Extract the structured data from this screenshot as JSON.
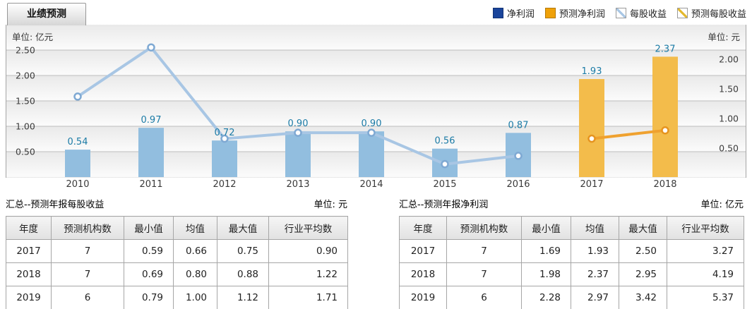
{
  "tab": {
    "label": "业绩预测"
  },
  "legend": [
    {
      "label": "净利润",
      "type": "filled",
      "color": "#1a449b"
    },
    {
      "label": "预测净利润",
      "type": "filled",
      "color": "#efa109"
    },
    {
      "label": "每股收益",
      "type": "line",
      "color": "#a8c6e4"
    },
    {
      "label": "预测每股收益",
      "type": "line",
      "color": "#e3b92e"
    }
  ],
  "chart": {
    "left_unit": "单位: 亿元",
    "right_unit": "单位: 元"
  },
  "chart_data": {
    "type": "bar+line",
    "categories": [
      "2010",
      "2011",
      "2012",
      "2013",
      "2014",
      "2015",
      "2016",
      "2017",
      "2018"
    ],
    "series": [
      {
        "name": "净利润",
        "type": "bar",
        "axis": "left",
        "color": "#92bedf",
        "values": [
          0.54,
          0.97,
          0.72,
          0.9,
          0.9,
          0.56,
          0.87,
          null,
          null
        ],
        "labeled": true
      },
      {
        "name": "预测净利润",
        "type": "bar",
        "axis": "left",
        "color": "#f3bc4b",
        "values": [
          null,
          null,
          null,
          null,
          null,
          null,
          null,
          1.93,
          2.37
        ],
        "labeled": true
      },
      {
        "name": "每股收益",
        "type": "line",
        "axis": "right",
        "color": "#a8c6e4",
        "marker_stroke": "#7fa9d3",
        "values": [
          1.37,
          2.2,
          0.66,
          0.76,
          0.76,
          0.23,
          0.37,
          null,
          null
        ],
        "labeled": false
      },
      {
        "name": "预测每股收益",
        "type": "line",
        "axis": "right",
        "color": "#efa12f",
        "marker_stroke": "#e6941f",
        "values": [
          null,
          null,
          null,
          null,
          null,
          null,
          null,
          0.66,
          0.8
        ],
        "labeled": false
      }
    ],
    "left_axis": {
      "unit": "亿元",
      "ticks": [
        0.5,
        1.0,
        1.5,
        2.0,
        2.5
      ],
      "range": [
        0,
        3.0
      ]
    },
    "right_axis": {
      "unit": "元",
      "ticks": [
        0.5,
        1.0,
        1.5,
        2.0
      ],
      "range": [
        0,
        2.57
      ]
    },
    "value_label_color": "#1b7ba6",
    "grid": true,
    "legend_position": "top-right"
  },
  "tables": {
    "left": {
      "title": "汇总--预测年报每股收益",
      "unit": "单位: 元",
      "headers": [
        "年度",
        "预测机构数",
        "最小值",
        "均值",
        "最大值",
        "行业平均数"
      ],
      "rows": [
        [
          "2017",
          "7",
          "0.59",
          "0.66",
          "0.75",
          "0.90"
        ],
        [
          "2018",
          "7",
          "0.69",
          "0.80",
          "0.88",
          "1.22"
        ],
        [
          "2019",
          "6",
          "0.79",
          "1.00",
          "1.12",
          "1.71"
        ]
      ]
    },
    "right": {
      "title": "汇总--预测年报净利润",
      "unit": "单位: 亿元",
      "headers": [
        "年度",
        "预测机构数",
        "最小值",
        "均值",
        "最大值",
        "行业平均数"
      ],
      "rows": [
        [
          "2017",
          "7",
          "1.69",
          "1.93",
          "2.50",
          "3.27"
        ],
        [
          "2018",
          "7",
          "1.98",
          "2.37",
          "2.95",
          "4.19"
        ],
        [
          "2019",
          "6",
          "2.28",
          "2.97",
          "3.42",
          "5.37"
        ]
      ]
    }
  }
}
